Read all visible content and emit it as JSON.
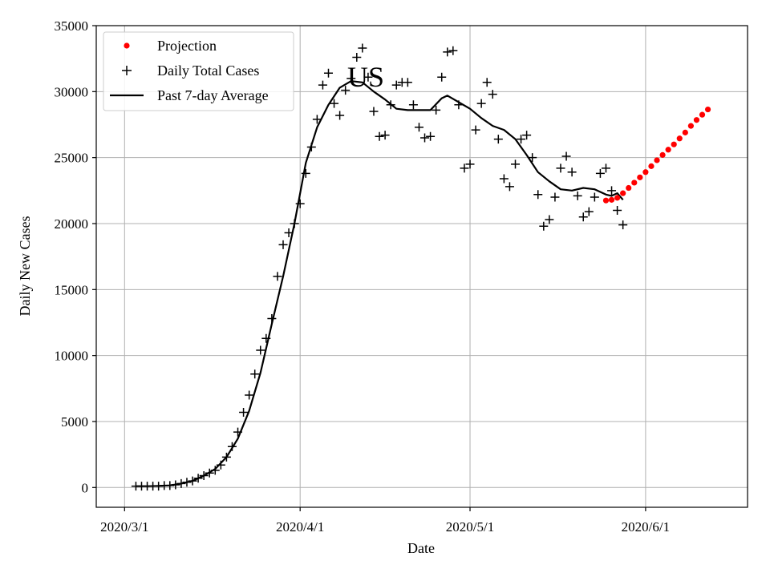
{
  "chart_data": {
    "type": "line",
    "title": "US",
    "xlabel": "Date",
    "ylabel": "Daily New Cases",
    "ylim": [
      -1500,
      35000
    ],
    "xlim": [
      "2020-02-25",
      "2020-06-19"
    ],
    "grid": true,
    "legend_position": "top-left",
    "x_ticks": [
      {
        "date": "2020-03-01",
        "label": "2020/3/1"
      },
      {
        "date": "2020-04-01",
        "label": "2020/4/1"
      },
      {
        "date": "2020-05-01",
        "label": "2020/5/1"
      },
      {
        "date": "2020-06-01",
        "label": "2020/6/1"
      }
    ],
    "y_ticks": [
      0,
      5000,
      10000,
      15000,
      20000,
      25000,
      30000,
      35000
    ],
    "colors": {
      "projection": "#ff0000",
      "daily": "#000000",
      "average": "#000000",
      "grid": "#b0b0b0"
    },
    "series": [
      {
        "name": "Projection",
        "style": "dots",
        "points": [
          [
            "2020-05-25",
            21750
          ],
          [
            "2020-05-26",
            21800
          ],
          [
            "2020-05-27",
            21950
          ],
          [
            "2020-05-28",
            22300
          ],
          [
            "2020-05-29",
            22700
          ],
          [
            "2020-05-30",
            23100
          ],
          [
            "2020-05-31",
            23500
          ],
          [
            "2020-06-01",
            23900
          ],
          [
            "2020-06-02",
            24350
          ],
          [
            "2020-06-03",
            24800
          ],
          [
            "2020-06-04",
            25200
          ],
          [
            "2020-06-05",
            25600
          ],
          [
            "2020-06-06",
            26000
          ],
          [
            "2020-06-07",
            26450
          ],
          [
            "2020-06-08",
            26900
          ],
          [
            "2020-06-09",
            27400
          ],
          [
            "2020-06-10",
            27850
          ],
          [
            "2020-06-11",
            28250
          ],
          [
            "2020-06-12",
            28650
          ]
        ]
      },
      {
        "name": "Daily Total Cases",
        "style": "plus",
        "points": [
          [
            "2020-03-03",
            100
          ],
          [
            "2020-03-04",
            100
          ],
          [
            "2020-03-05",
            100
          ],
          [
            "2020-03-06",
            100
          ],
          [
            "2020-03-07",
            100
          ],
          [
            "2020-03-08",
            150
          ],
          [
            "2020-03-09",
            150
          ],
          [
            "2020-03-10",
            200
          ],
          [
            "2020-03-11",
            300
          ],
          [
            "2020-03-12",
            400
          ],
          [
            "2020-03-13",
            500
          ],
          [
            "2020-03-14",
            700
          ],
          [
            "2020-03-15",
            900
          ],
          [
            "2020-03-16",
            1100
          ],
          [
            "2020-03-17",
            1300
          ],
          [
            "2020-03-18",
            1700
          ],
          [
            "2020-03-19",
            2300
          ],
          [
            "2020-03-20",
            3100
          ],
          [
            "2020-03-21",
            4200
          ],
          [
            "2020-03-22",
            5700
          ],
          [
            "2020-03-23",
            7000
          ],
          [
            "2020-03-24",
            8600
          ],
          [
            "2020-03-25",
            10400
          ],
          [
            "2020-03-26",
            11300
          ],
          [
            "2020-03-27",
            12800
          ],
          [
            "2020-03-28",
            16000
          ],
          [
            "2020-03-29",
            18400
          ],
          [
            "2020-03-30",
            19300
          ],
          [
            "2020-03-31",
            20000
          ],
          [
            "2020-04-01",
            21500
          ],
          [
            "2020-04-02",
            23800
          ],
          [
            "2020-04-03",
            25800
          ],
          [
            "2020-04-04",
            27900
          ],
          [
            "2020-04-05",
            30500
          ],
          [
            "2020-04-06",
            31400
          ],
          [
            "2020-04-07",
            29100
          ],
          [
            "2020-04-08",
            28200
          ],
          [
            "2020-04-09",
            30100
          ],
          [
            "2020-04-10",
            31000
          ],
          [
            "2020-04-11",
            32600
          ],
          [
            "2020-04-12",
            33300
          ],
          [
            "2020-04-13",
            31100
          ],
          [
            "2020-04-14",
            28500
          ],
          [
            "2020-04-15",
            26600
          ],
          [
            "2020-04-16",
            26700
          ],
          [
            "2020-04-17",
            29000
          ],
          [
            "2020-04-18",
            30500
          ],
          [
            "2020-04-19",
            30700
          ],
          [
            "2020-04-20",
            30700
          ],
          [
            "2020-04-21",
            29000
          ],
          [
            "2020-04-22",
            27300
          ],
          [
            "2020-04-23",
            26500
          ],
          [
            "2020-04-24",
            26600
          ],
          [
            "2020-04-25",
            28600
          ],
          [
            "2020-04-26",
            31100
          ],
          [
            "2020-04-27",
            33000
          ],
          [
            "2020-04-28",
            33100
          ],
          [
            "2020-04-29",
            29000
          ],
          [
            "2020-04-30",
            24200
          ],
          [
            "2020-05-01",
            24500
          ],
          [
            "2020-05-02",
            27100
          ],
          [
            "2020-05-03",
            29100
          ],
          [
            "2020-05-04",
            30700
          ],
          [
            "2020-05-05",
            29800
          ],
          [
            "2020-05-06",
            26400
          ],
          [
            "2020-05-07",
            23400
          ],
          [
            "2020-05-08",
            22800
          ],
          [
            "2020-05-09",
            24500
          ],
          [
            "2020-05-10",
            26400
          ],
          [
            "2020-05-11",
            26700
          ],
          [
            "2020-05-12",
            25000
          ],
          [
            "2020-05-13",
            22200
          ],
          [
            "2020-05-14",
            19800
          ],
          [
            "2020-05-15",
            20300
          ],
          [
            "2020-05-16",
            22000
          ],
          [
            "2020-05-17",
            24200
          ],
          [
            "2020-05-18",
            25100
          ],
          [
            "2020-05-19",
            23900
          ],
          [
            "2020-05-20",
            22100
          ],
          [
            "2020-05-21",
            20500
          ],
          [
            "2020-05-22",
            20900
          ],
          [
            "2020-05-23",
            22000
          ],
          [
            "2020-05-24",
            23800
          ],
          [
            "2020-05-25",
            24200
          ],
          [
            "2020-05-26",
            22500
          ],
          [
            "2020-05-27",
            21000
          ],
          [
            "2020-05-28",
            19900
          ]
        ]
      },
      {
        "name": "Past 7-day Average",
        "style": "line",
        "points": [
          [
            "2020-03-03",
            100
          ],
          [
            "2020-03-05",
            100
          ],
          [
            "2020-03-07",
            120
          ],
          [
            "2020-03-09",
            160
          ],
          [
            "2020-03-11",
            300
          ],
          [
            "2020-03-13",
            500
          ],
          [
            "2020-03-15",
            900
          ],
          [
            "2020-03-17",
            1400
          ],
          [
            "2020-03-19",
            2300
          ],
          [
            "2020-03-21",
            3700
          ],
          [
            "2020-03-23",
            5800
          ],
          [
            "2020-03-25",
            8700
          ],
          [
            "2020-03-27",
            12400
          ],
          [
            "2020-03-29",
            16000
          ],
          [
            "2020-03-31",
            20000
          ],
          [
            "2020-04-02",
            24600
          ],
          [
            "2020-04-04",
            27300
          ],
          [
            "2020-04-06",
            29000
          ],
          [
            "2020-04-08",
            30300
          ],
          [
            "2020-04-10",
            30800
          ],
          [
            "2020-04-12",
            30700
          ],
          [
            "2020-04-14",
            30000
          ],
          [
            "2020-04-16",
            29400
          ],
          [
            "2020-04-18",
            28700
          ],
          [
            "2020-04-20",
            28600
          ],
          [
            "2020-04-22",
            28600
          ],
          [
            "2020-04-24",
            28600
          ],
          [
            "2020-04-26",
            29500
          ],
          [
            "2020-04-27",
            29700
          ],
          [
            "2020-04-29",
            29200
          ],
          [
            "2020-05-01",
            28700
          ],
          [
            "2020-05-03",
            28000
          ],
          [
            "2020-05-05",
            27400
          ],
          [
            "2020-05-07",
            27100
          ],
          [
            "2020-05-09",
            26400
          ],
          [
            "2020-05-11",
            25200
          ],
          [
            "2020-05-13",
            23900
          ],
          [
            "2020-05-15",
            23200
          ],
          [
            "2020-05-17",
            22600
          ],
          [
            "2020-05-19",
            22500
          ],
          [
            "2020-05-21",
            22700
          ],
          [
            "2020-05-23",
            22600
          ],
          [
            "2020-05-25",
            22200
          ],
          [
            "2020-05-26",
            22100
          ],
          [
            "2020-05-27",
            22300
          ],
          [
            "2020-05-28",
            21800
          ]
        ]
      }
    ]
  }
}
